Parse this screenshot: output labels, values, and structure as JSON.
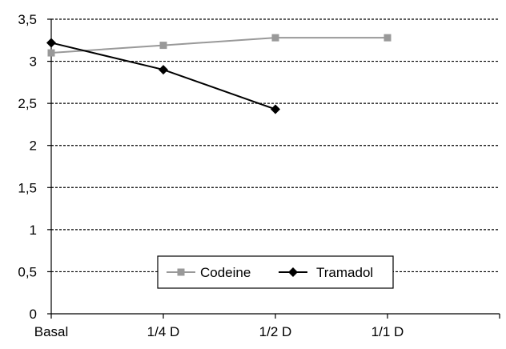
{
  "chart_data": {
    "type": "line",
    "title": "",
    "xlabel": "",
    "ylabel": "",
    "categories": [
      "Basal",
      "1/4 D",
      "1/2 D",
      "1/1 D"
    ],
    "y_tick_labels": [
      "0",
      "0,5",
      "1",
      "1,5",
      "2",
      "2,5",
      "3",
      "3,5"
    ],
    "ylim": [
      0,
      3.5
    ],
    "ytick_step": 0.5,
    "grid": "horizontal dashed",
    "legend_placement": "bottom-center",
    "series": [
      {
        "name": "Codeine",
        "values": [
          3.1,
          3.19,
          3.28,
          3.28
        ],
        "color": "#999999",
        "marker": "square"
      },
      {
        "name": "Tramadol",
        "values": [
          3.22,
          2.9,
          2.43,
          null
        ],
        "color": "#000000",
        "marker": "diamond"
      }
    ]
  }
}
